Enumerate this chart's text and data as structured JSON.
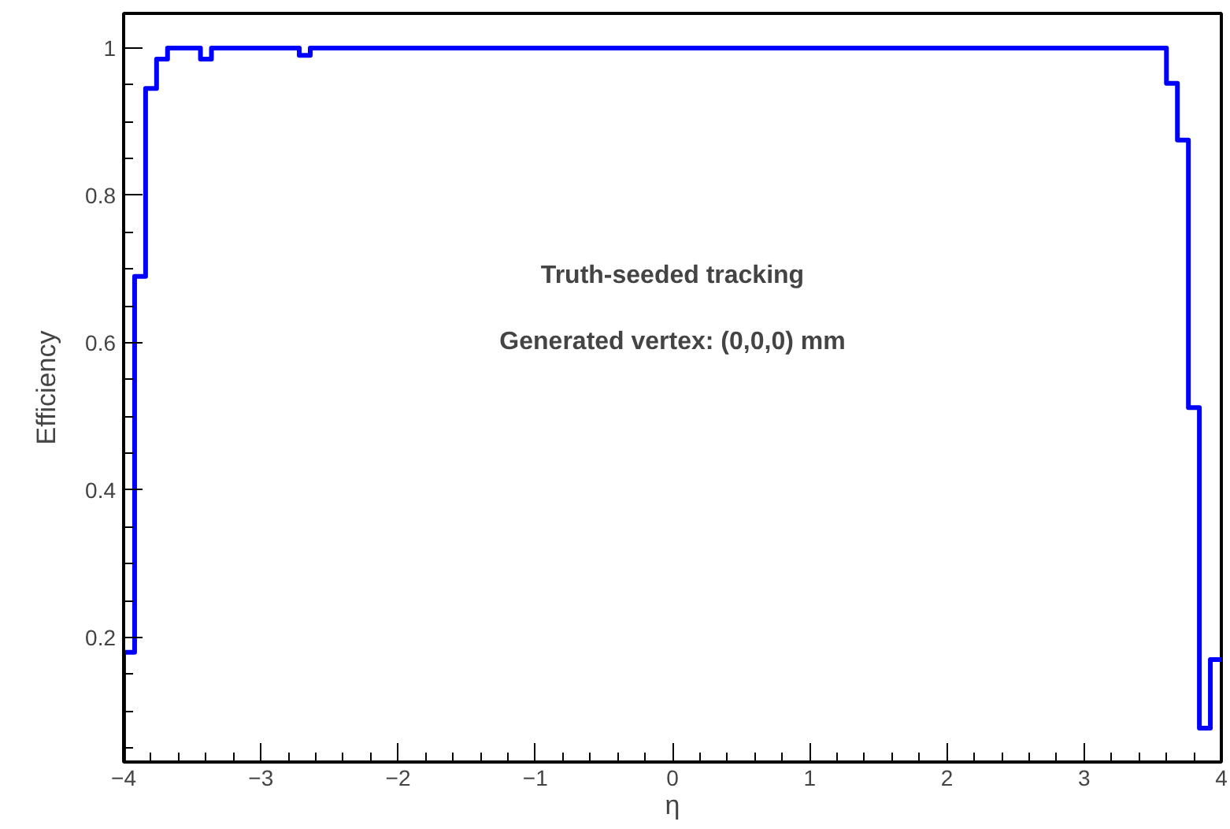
{
  "chart_data": {
    "type": "histogram",
    "xlabel": "η",
    "ylabel": "Efficiency",
    "annotations": [
      "Truth-seeded tracking",
      "Generated vertex: (0,0,0) mm"
    ],
    "color": "#0000ff",
    "bins": [
      -4.0,
      -3.92,
      -3.84,
      -3.76,
      -3.68,
      -3.6,
      -3.52,
      -3.44,
      -3.36,
      -3.28,
      -3.2,
      -3.12,
      -3.04,
      -2.96,
      -2.88,
      -2.8,
      -2.72,
      -2.64,
      -2.56,
      -2.48,
      -2.4,
      -2.32,
      -2.24,
      -2.16,
      -2.08,
      -2.0,
      -1.92,
      -1.84,
      -1.76,
      -1.68,
      -1.6,
      -1.52,
      -1.44,
      -1.36,
      -1.28,
      -1.2,
      -1.12,
      -1.04,
      -0.96,
      -0.88,
      -0.8,
      -0.72,
      -0.64,
      -0.56,
      -0.48,
      -0.4,
      -0.32,
      -0.24,
      -0.16,
      -0.08,
      0.0,
      0.08,
      0.16,
      0.24,
      0.32,
      0.4,
      0.48,
      0.56,
      0.64,
      0.72,
      0.8,
      0.88,
      0.96,
      1.04,
      1.12,
      1.2,
      1.28,
      1.36,
      1.44,
      1.52,
      1.6,
      1.68,
      1.76,
      1.84,
      1.92,
      2.0,
      2.08,
      2.16,
      2.24,
      2.32,
      2.4,
      2.48,
      2.56,
      2.64,
      2.72,
      2.8,
      2.88,
      2.96,
      3.04,
      3.12,
      3.2,
      3.28,
      3.36,
      3.44,
      3.52,
      3.6,
      3.68,
      3.76,
      3.84,
      3.92,
      4.0
    ],
    "values": [
      0.18,
      0.69,
      0.945,
      0.985,
      1,
      1,
      1,
      0.985,
      1,
      1,
      1,
      1,
      1,
      1,
      1,
      1,
      0.99,
      1,
      1,
      1,
      1,
      1,
      1,
      1,
      1,
      1,
      1,
      1,
      1,
      1,
      1,
      1,
      1,
      1,
      1,
      1,
      1,
      1,
      1,
      1,
      1,
      1,
      1,
      1,
      1,
      1,
      1,
      1,
      1,
      1,
      1,
      1,
      1,
      1,
      1,
      1,
      1,
      1,
      1,
      1,
      1,
      1,
      1,
      1,
      1,
      1,
      1,
      1,
      1,
      1,
      1,
      1,
      1,
      1,
      1,
      1,
      1,
      1,
      1,
      1,
      1,
      1,
      1,
      1,
      1,
      1,
      1,
      1,
      1,
      1,
      1,
      1,
      1,
      1,
      1,
      0.952,
      0.875,
      0.512,
      0.077,
      0.17
    ],
    "xlim": [
      -4,
      4
    ],
    "ylim": [
      0.031,
      1.047
    ],
    "xticks": [
      -4,
      -3,
      -2,
      -1,
      0,
      1,
      2,
      3,
      4
    ],
    "yticks": [
      0.2,
      0.4,
      0.6,
      0.8,
      1
    ],
    "grid": false
  }
}
